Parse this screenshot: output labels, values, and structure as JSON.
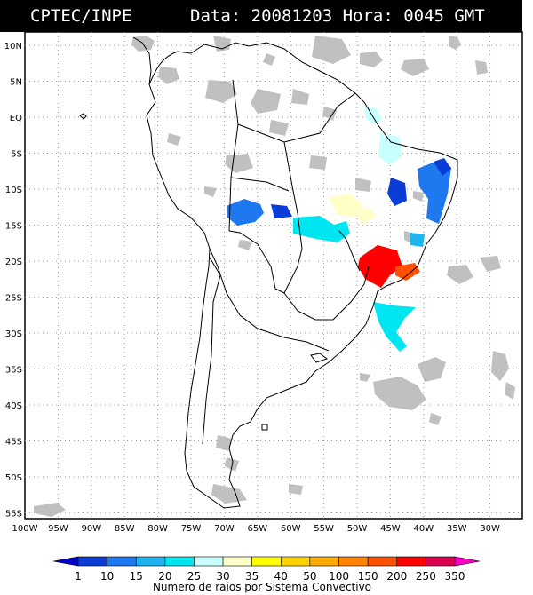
{
  "header": {
    "source": "CPTEC/INPE",
    "datetime": "Data: 20081203 Hora: 0045 GMT"
  },
  "axes": {
    "lat_labels": [
      "10N",
      "5N",
      "EQ",
      "5S",
      "10S",
      "15S",
      "20S",
      "25S",
      "30S",
      "35S",
      "40S",
      "45S",
      "50S",
      "55S"
    ],
    "lon_labels": [
      "100W",
      "95W",
      "90W",
      "85W",
      "80W",
      "75W",
      "70W",
      "65W",
      "60W",
      "55W",
      "50W",
      "45W",
      "40W",
      "35W",
      "30W"
    ]
  },
  "legend": {
    "values": [
      "1",
      "10",
      "15",
      "20",
      "25",
      "30",
      "35",
      "40",
      "50",
      "100",
      "150",
      "200",
      "250",
      "350"
    ],
    "colors": [
      "#0000c8",
      "#0a3cd8",
      "#1e78f0",
      "#1eb4f0",
      "#00e6f0",
      "#c8ffff",
      "#ffffc8",
      "#ffff00",
      "#ffd200",
      "#ffaa00",
      "#ff8200",
      "#ff5000",
      "#ff0000",
      "#dc0050",
      "#ff00c8"
    ],
    "title": "Numero de raios por Sistema Convectivo"
  },
  "map_colors": {
    "coast": "#000000",
    "grid": "#9a9a9a",
    "clouds": "#c0c0c0"
  }
}
